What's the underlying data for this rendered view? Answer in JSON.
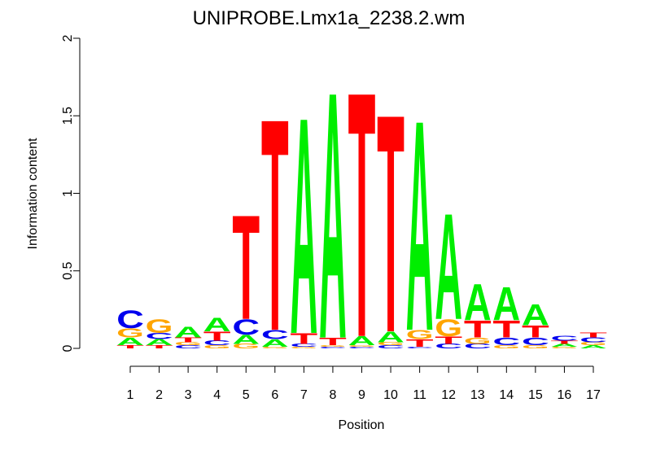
{
  "chart_data": {
    "type": "logo",
    "title": "UNIPROBE.Lmx1a_2238.2.wm",
    "x_label": "Position",
    "y_label": "Information content",
    "categories": [
      "1",
      "2",
      "3",
      "4",
      "5",
      "6",
      "7",
      "8",
      "9",
      "10",
      "11",
      "12",
      "13",
      "14",
      "15",
      "16",
      "17"
    ],
    "ylim": [
      0,
      2
    ],
    "yticks": [
      0,
      {
        "value": 0.5,
        "label": "0.5"
      },
      1,
      {
        "value": 1.5,
        "label": "1.5"
      },
      2
    ],
    "series": [
      {
        "name": "A",
        "color": "#00ee00",
        "values": [
          0.05,
          0.04,
          0.07,
          0.09,
          0.06,
          0.05,
          1.43,
          1.63,
          0.06,
          0.07,
          1.39,
          0.7,
          0.24,
          0.22,
          0.14,
          0.02,
          0.02
        ]
      },
      {
        "name": "C",
        "color": "#0000ee",
        "values": [
          0.12,
          0.04,
          0.02,
          0.03,
          0.1,
          0.06,
          0.02,
          0.01,
          0.01,
          0.02,
          0.01,
          0.03,
          0.03,
          0.05,
          0.05,
          0.03,
          0.03
        ]
      },
      {
        "name": "G",
        "color": "#ffa500",
        "values": [
          0.06,
          0.09,
          0.02,
          0.02,
          0.03,
          0.01,
          0.01,
          0.01,
          0.01,
          0.02,
          0.06,
          0.11,
          0.04,
          0.02,
          0.02,
          0.01,
          0.02
        ]
      },
      {
        "name": "T",
        "color": "#ff0000",
        "values": [
          0.02,
          0.02,
          0.03,
          0.06,
          0.69,
          1.4,
          0.07,
          0.05,
          1.62,
          1.44,
          0.05,
          0.05,
          0.11,
          0.11,
          0.08,
          0.02,
          0.03
        ]
      }
    ]
  }
}
